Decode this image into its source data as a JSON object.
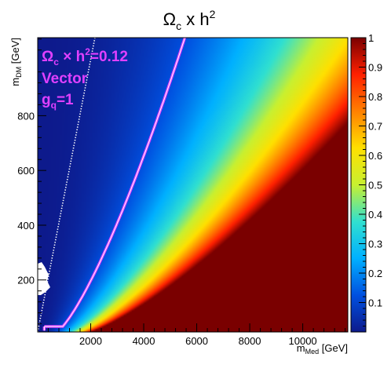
{
  "chart_data": {
    "type": "heatmap",
    "title": {
      "main": "Ω",
      "sub": "c",
      "mid": " x h",
      "sup": "2"
    },
    "xlabel": {
      "main": "m",
      "sub": "Med",
      "unit": " [GeV]"
    },
    "ylabel": {
      "main": "m",
      "sub": "DM",
      "unit": " [GeV]"
    },
    "xlim": [
      0,
      11700
    ],
    "ylim": [
      10,
      1085
    ],
    "zlim": [
      0,
      1
    ],
    "x_ticks": [
      2000,
      4000,
      6000,
      8000,
      10000
    ],
    "y_ticks": [
      200,
      400,
      600,
      800
    ],
    "z_ticks": [
      0.1,
      0.2,
      0.3,
      0.4,
      0.5,
      0.6,
      0.7,
      0.8,
      0.9,
      1
    ],
    "x_tick_labels": [
      "2000",
      "4000",
      "6000",
      "8000",
      "10000"
    ],
    "y_tick_labels": [
      "200",
      "400",
      "600",
      "800"
    ],
    "z_tick_labels": [
      "0.1",
      "0.2",
      "0.3",
      "0.4",
      "0.5",
      "0.6",
      "0.7",
      "0.8",
      "0.9",
      "1"
    ],
    "colormap": [
      "#0d1a8c",
      "#0050e0",
      "#00b0ff",
      "#30e0d0",
      "#c8f030",
      "#ffe000",
      "#ff8000",
      "#ff2000",
      "#7a0000"
    ],
    "contour_level": 0.12,
    "contour_color": "#e040ff",
    "resonance_line": "m_DM = m_Med / 2",
    "annotations": {
      "relic_main": "Ω",
      "relic_sub": "c",
      "relic_rest": " × h",
      "relic_sup": "2",
      "relic_value": "=0.12",
      "model": "Vector",
      "coupling_main": "g",
      "coupling_sub": "q",
      "coupling_value": "=1",
      "color": "#e040ff"
    }
  }
}
